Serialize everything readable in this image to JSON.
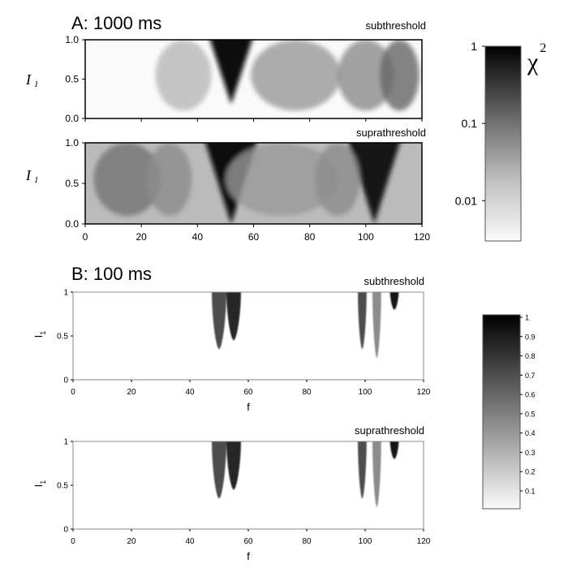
{
  "chart_data": [
    {
      "type": "heatmap",
      "panel_label": "A:  1000 ms",
      "subtitle": "subthreshold",
      "ylabel": "I",
      "ylabel_sub": "1",
      "xlim": [
        0,
        120
      ],
      "ylim": [
        0,
        1
      ],
      "xticks": [
        "0",
        "20",
        "40",
        "60",
        "80",
        "100",
        "120"
      ],
      "yticks": [
        "0.0",
        "0.5",
        "1.0"
      ],
      "show_xticklabels": false,
      "features": [
        {
          "type": "wedge",
          "center": 52,
          "base_half_width": 5,
          "apex_y": 0.18,
          "intensity": 0.95
        },
        {
          "type": "broad",
          "center": 35,
          "width": 10,
          "intensity": 0.28
        },
        {
          "type": "broad",
          "center": 75,
          "width": 16,
          "intensity": 0.4
        },
        {
          "type": "broad",
          "center": 100,
          "width": 10,
          "intensity": 0.45
        },
        {
          "type": "broad",
          "center": 112,
          "width": 7,
          "intensity": 0.6
        }
      ]
    },
    {
      "type": "heatmap",
      "subtitle": "suprathreshold",
      "ylabel": "I",
      "ylabel_sub": "1",
      "xlim": [
        0,
        120
      ],
      "ylim": [
        0,
        1
      ],
      "xticks": [
        "0",
        "20",
        "40",
        "60",
        "80",
        "100",
        "120"
      ],
      "yticks": [
        "0.0",
        "0.5",
        "1.0"
      ],
      "show_xticklabels": true,
      "features": [
        {
          "type": "wedge",
          "center": 52,
          "base_half_width": 6,
          "apex_y": 0.0,
          "intensity": 0.97
        },
        {
          "type": "wedge",
          "center": 103,
          "base_half_width": 6,
          "apex_y": 0.0,
          "intensity": 0.92
        },
        {
          "type": "broad",
          "center": 15,
          "width": 12,
          "intensity": 0.55
        },
        {
          "type": "broad",
          "center": 30,
          "width": 8,
          "intensity": 0.45
        },
        {
          "type": "broad",
          "center": 70,
          "width": 20,
          "intensity": 0.4
        },
        {
          "type": "broad",
          "center": 90,
          "width": 8,
          "intensity": 0.45
        }
      ]
    },
    {
      "type": "heatmap",
      "panel_label": "B: 100 ms",
      "subtitle": "subthreshold",
      "ylabel": "I",
      "ylabel_sub": "1",
      "xlabel": "f",
      "xlim": [
        0,
        120
      ],
      "ylim": [
        0,
        1
      ],
      "xticks": [
        "0",
        "20",
        "40",
        "60",
        "80",
        "100",
        "120"
      ],
      "yticks": [
        "0",
        "0.5",
        "1"
      ],
      "features": [
        {
          "type": "lobe",
          "center": 50,
          "width": 2.5,
          "apex_y": 0.35,
          "intensity": 0.7
        },
        {
          "type": "lobe",
          "center": 55,
          "width": 2.5,
          "apex_y": 0.45,
          "intensity": 0.85
        },
        {
          "type": "lobe",
          "center": 99,
          "width": 1.5,
          "apex_y": 0.35,
          "intensity": 0.7
        },
        {
          "type": "lobe",
          "center": 104,
          "width": 1.5,
          "apex_y": 0.25,
          "intensity": 0.45
        },
        {
          "type": "lobe",
          "center": 110,
          "width": 1.5,
          "apex_y": 0.8,
          "intensity": 0.9
        }
      ]
    },
    {
      "type": "heatmap",
      "subtitle": "suprathreshold",
      "ylabel": "I",
      "ylabel_sub": "1",
      "xlabel": "f",
      "xlim": [
        0,
        120
      ],
      "ylim": [
        0,
        1
      ],
      "xticks": [
        "0",
        "20",
        "40",
        "60",
        "80",
        "100",
        "120"
      ],
      "yticks": [
        "0",
        "0.5",
        "1"
      ],
      "features": [
        {
          "type": "lobe",
          "center": 50,
          "width": 2.5,
          "apex_y": 0.35,
          "intensity": 0.7
        },
        {
          "type": "lobe",
          "center": 55,
          "width": 2.5,
          "apex_y": 0.45,
          "intensity": 0.85
        },
        {
          "type": "lobe",
          "center": 99,
          "width": 1.5,
          "apex_y": 0.35,
          "intensity": 0.7
        },
        {
          "type": "lobe",
          "center": 104,
          "width": 1.5,
          "apex_y": 0.25,
          "intensity": 0.45
        },
        {
          "type": "lobe",
          "center": 110,
          "width": 1.5,
          "apex_y": 0.8,
          "intensity": 0.9
        }
      ]
    }
  ],
  "colorbars": [
    {
      "title": "χ",
      "title_sup": "2",
      "scale": "log",
      "ticks": [
        "1",
        "0.1",
        "0.01"
      ]
    },
    {
      "scale": "linear",
      "ticks": [
        "1",
        "0.9",
        "0.8",
        "0.7",
        "0.6",
        "0.5",
        "0.4",
        "0.3",
        "0.2",
        "0.1"
      ]
    }
  ]
}
